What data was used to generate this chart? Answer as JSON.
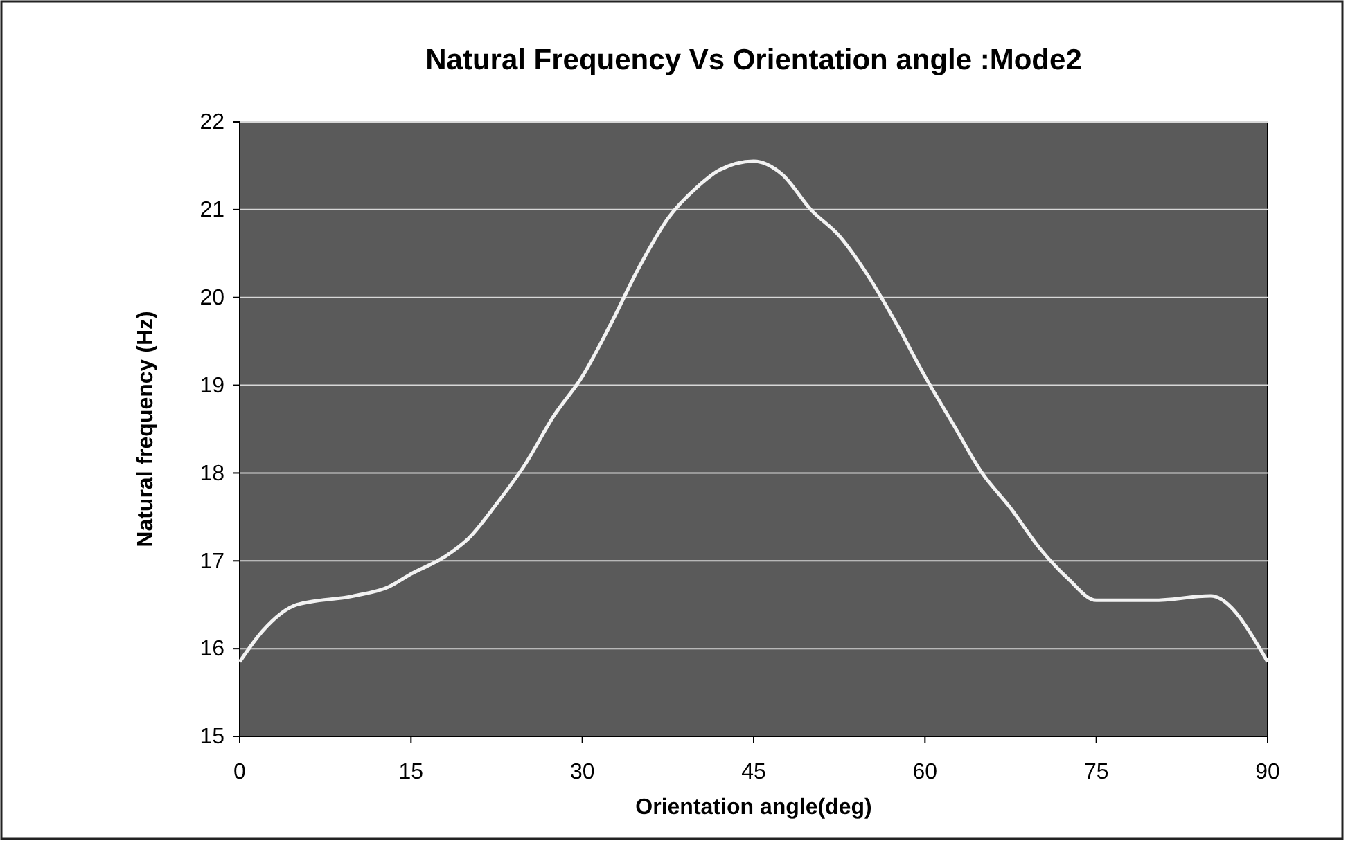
{
  "chart_data": {
    "type": "line",
    "title": "Natural Frequency Vs Orientation angle :Mode2",
    "xlabel": "Orientation angle(deg)",
    "ylabel": "Natural frequency (Hz)",
    "x": [
      0,
      2,
      5,
      10,
      13,
      15,
      18,
      20,
      22.5,
      25,
      27.5,
      30,
      32.5,
      35,
      37.5,
      40,
      42,
      45,
      47.5,
      50,
      52.5,
      55,
      57.5,
      60,
      62.5,
      65,
      67.5,
      70,
      72.5,
      75,
      80,
      85,
      90
    ],
    "series": [
      {
        "color": "#f2f2f2",
        "values": [
          15.85,
          16.2,
          16.5,
          16.6,
          16.7,
          16.85,
          17.05,
          17.25,
          17.65,
          18.1,
          18.65,
          19.1,
          19.7,
          20.35,
          20.9,
          21.25,
          21.45,
          21.55,
          21.4,
          21.0,
          20.7,
          20.25,
          19.7,
          19.1,
          18.55,
          18.0,
          17.6,
          17.15,
          16.8,
          16.55,
          16.55,
          16.6,
          15.85
        ]
      }
    ],
    "xlim": [
      0,
      90
    ],
    "xticks": [
      0,
      15,
      30,
      45,
      60,
      75,
      90
    ],
    "ylim": [
      15,
      22
    ],
    "yticks": [
      15,
      16,
      17,
      18,
      19,
      20,
      21,
      22
    ],
    "grid": "y",
    "marker": "none",
    "line_style": "solid"
  }
}
